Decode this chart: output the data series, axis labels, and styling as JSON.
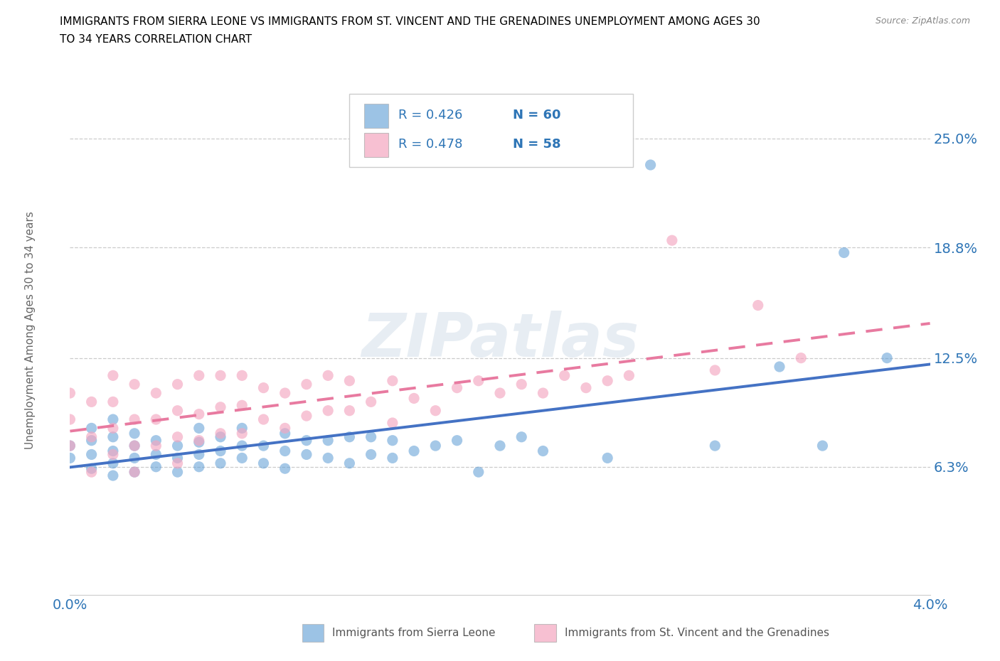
{
  "title_line1": "IMMIGRANTS FROM SIERRA LEONE VS IMMIGRANTS FROM ST. VINCENT AND THE GRENADINES UNEMPLOYMENT AMONG AGES 30",
  "title_line2": "TO 34 YEARS CORRELATION CHART",
  "source": "Source: ZipAtlas.com",
  "ylabel": "Unemployment Among Ages 30 to 34 years",
  "xlim": [
    0.0,
    0.04
  ],
  "ylim": [
    -0.01,
    0.28
  ],
  "ytick_vals": [
    0.063,
    0.125,
    0.188,
    0.25
  ],
  "ytick_labels": [
    "6.3%",
    "12.5%",
    "18.8%",
    "25.0%"
  ],
  "xtick_vals": [
    0.0,
    0.04
  ],
  "xtick_labels": [
    "0.0%",
    "4.0%"
  ],
  "r1": "R = 0.426",
  "n1": "N = 60",
  "r2": "R = 0.478",
  "n2": "N = 58",
  "blue_color": "#5b9bd5",
  "pink_color": "#f4a6c0",
  "pink_line_color": "#e87aa0",
  "blue_line_color": "#4472c4",
  "series1_label": "Immigrants from Sierra Leone",
  "series2_label": "Immigrants from St. Vincent and the Grenadines",
  "watermark": "ZIPatlas",
  "legend_text_color": "#2e75b6",
  "axis_tick_color": "#2e75b6"
}
